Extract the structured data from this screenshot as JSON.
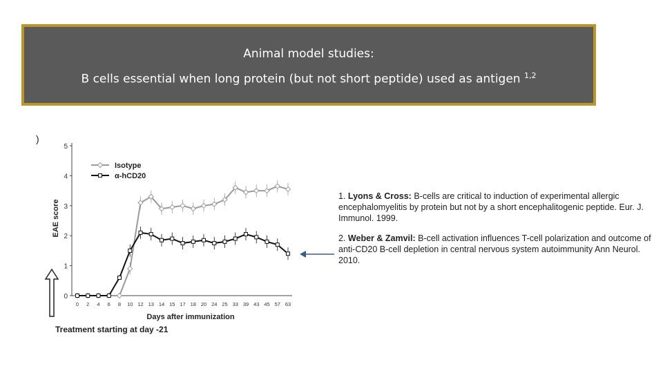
{
  "header": {
    "line1": "Animal model studies:",
    "line2": "B cells essential when long protein (but not short peptide) used as antigen",
    "superscript": "1,2"
  },
  "chart_data": {
    "type": "line",
    "panel_mark": ")",
    "title": "",
    "xlabel": "Days after immunization",
    "ylabel": "EAE score",
    "footnote": "Treatment starting at day -21",
    "ylim": [
      0,
      5
    ],
    "yticks": [
      "0",
      "1",
      "2",
      "3",
      "4",
      "5"
    ],
    "x": [
      "0",
      "2",
      "4",
      "6",
      "8",
      "10",
      "12",
      "13",
      "14",
      "15",
      "17",
      "18",
      "20",
      "24",
      "25",
      "33",
      "39",
      "43",
      "45",
      "57",
      "63"
    ],
    "legend_position": "top-left",
    "grid": false,
    "series": [
      {
        "name": "Isotype",
        "color": "#9a9a9a",
        "marker": "diamond",
        "values": [
          0,
          0,
          0,
          0,
          0,
          0.9,
          3.1,
          3.3,
          2.9,
          2.95,
          3.0,
          2.9,
          3.0,
          3.05,
          3.2,
          3.6,
          3.45,
          3.5,
          3.5,
          3.65,
          3.55
        ]
      },
      {
        "name": "α-hCD20",
        "color": "#111111",
        "marker": "square",
        "values": [
          0,
          0,
          0,
          0,
          0.6,
          1.5,
          2.1,
          2.05,
          1.85,
          1.9,
          1.75,
          1.8,
          1.85,
          1.75,
          1.8,
          1.9,
          2.05,
          1.95,
          1.8,
          1.7,
          1.4
        ]
      }
    ]
  },
  "references": [
    {
      "number": "1.",
      "authors": "Lyons & Cross:",
      "text": "B-cells are critical to induction of experimental allergic encephalomyelitis by protein but not by a short encephalitogenic peptide. Eur. J. Immunol. 1999."
    },
    {
      "number": "2.",
      "authors": "Weber & Zamvil:",
      "text": "B-cell activation influences T-cell polarization and outcome of anti-CD20 B-cell depletion in central nervous system autoimmunity Ann Neurol. 2010."
    }
  ]
}
